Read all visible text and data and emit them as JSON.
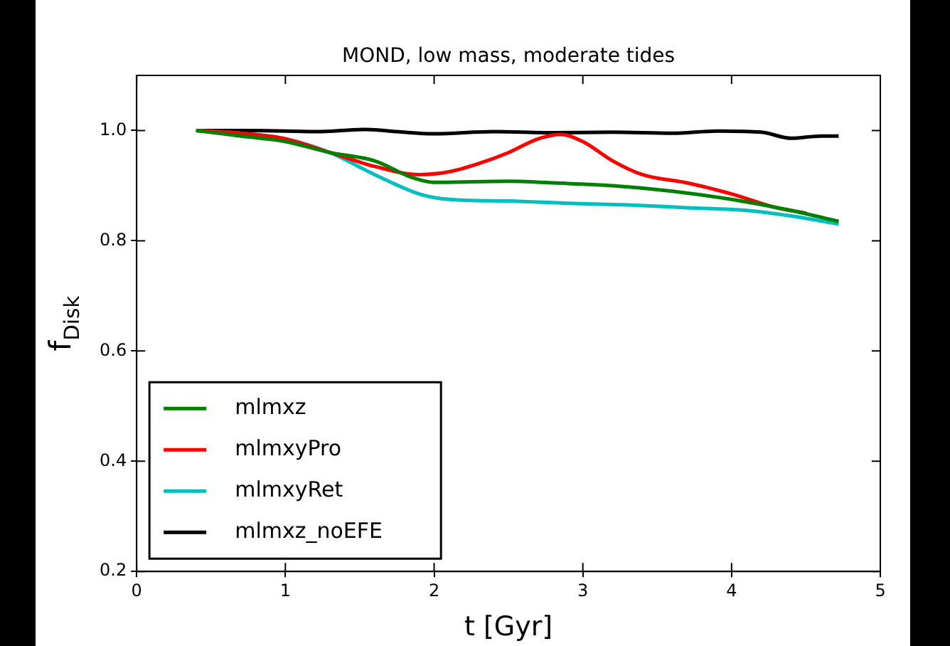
{
  "chart_data": {
    "type": "line",
    "title": "MOND, low mass, moderate tides",
    "xlabel": "t [Gyr]",
    "ylabel": "f$_{Disk}$",
    "xlim": [
      0,
      5
    ],
    "xticks": [
      0,
      1,
      2,
      3,
      4,
      5
    ],
    "ylim": [
      0.2,
      1.1
    ],
    "yticks": [
      0.2,
      0.4,
      0.6,
      0.8,
      {
        "value": 1.0,
        "label": "1.0"
      }
    ],
    "grid": false,
    "legend": "bottom left",
    "marker": "none",
    "line_style": "solid",
    "series": [
      {
        "name": "mlmxz",
        "color": "#008000",
        "x": [
          0.4,
          0.7,
          1.0,
          1.3,
          1.6,
          1.85,
          2.0,
          2.5,
          2.8,
          3.2,
          3.6,
          4.0,
          4.4,
          4.72
        ],
        "values": [
          1.0,
          0.99,
          0.98,
          0.96,
          0.945,
          0.915,
          0.906,
          0.908,
          0.905,
          0.9,
          0.89,
          0.875,
          0.855,
          0.835
        ]
      },
      {
        "name": "mlmxyPro",
        "color": "#ff0000",
        "x": [
          0.4,
          0.7,
          1.0,
          1.3,
          1.6,
          1.9,
          2.1,
          2.3,
          2.5,
          2.7,
          2.85,
          3.0,
          3.2,
          3.4,
          3.7,
          4.0,
          4.3,
          4.5
        ],
        "values": [
          1.0,
          0.995,
          0.985,
          0.96,
          0.935,
          0.92,
          0.925,
          0.94,
          0.96,
          0.985,
          0.993,
          0.98,
          0.945,
          0.92,
          0.905,
          0.885,
          0.86,
          0.85
        ]
      },
      {
        "name": "mlmxyRet",
        "color": "#00bfbf",
        "x": [
          0.4,
          0.7,
          1.0,
          1.3,
          1.6,
          1.9,
          2.1,
          2.5,
          2.9,
          3.3,
          3.7,
          4.1,
          4.4,
          4.72
        ],
        "values": [
          1.0,
          0.995,
          0.985,
          0.96,
          0.92,
          0.885,
          0.875,
          0.872,
          0.868,
          0.865,
          0.86,
          0.855,
          0.845,
          0.83
        ]
      },
      {
        "name": "mlmxz_noEFE",
        "color": "#000000",
        "x": [
          0.4,
          0.8,
          1.2,
          1.55,
          1.75,
          2.0,
          2.4,
          2.8,
          3.2,
          3.6,
          3.9,
          4.2,
          4.4,
          4.6,
          4.72
        ],
        "values": [
          1.0,
          1.0,
          0.998,
          1.002,
          0.998,
          0.994,
          0.998,
          0.996,
          0.997,
          0.995,
          0.999,
          0.997,
          0.986,
          0.99,
          0.99
        ]
      }
    ]
  }
}
